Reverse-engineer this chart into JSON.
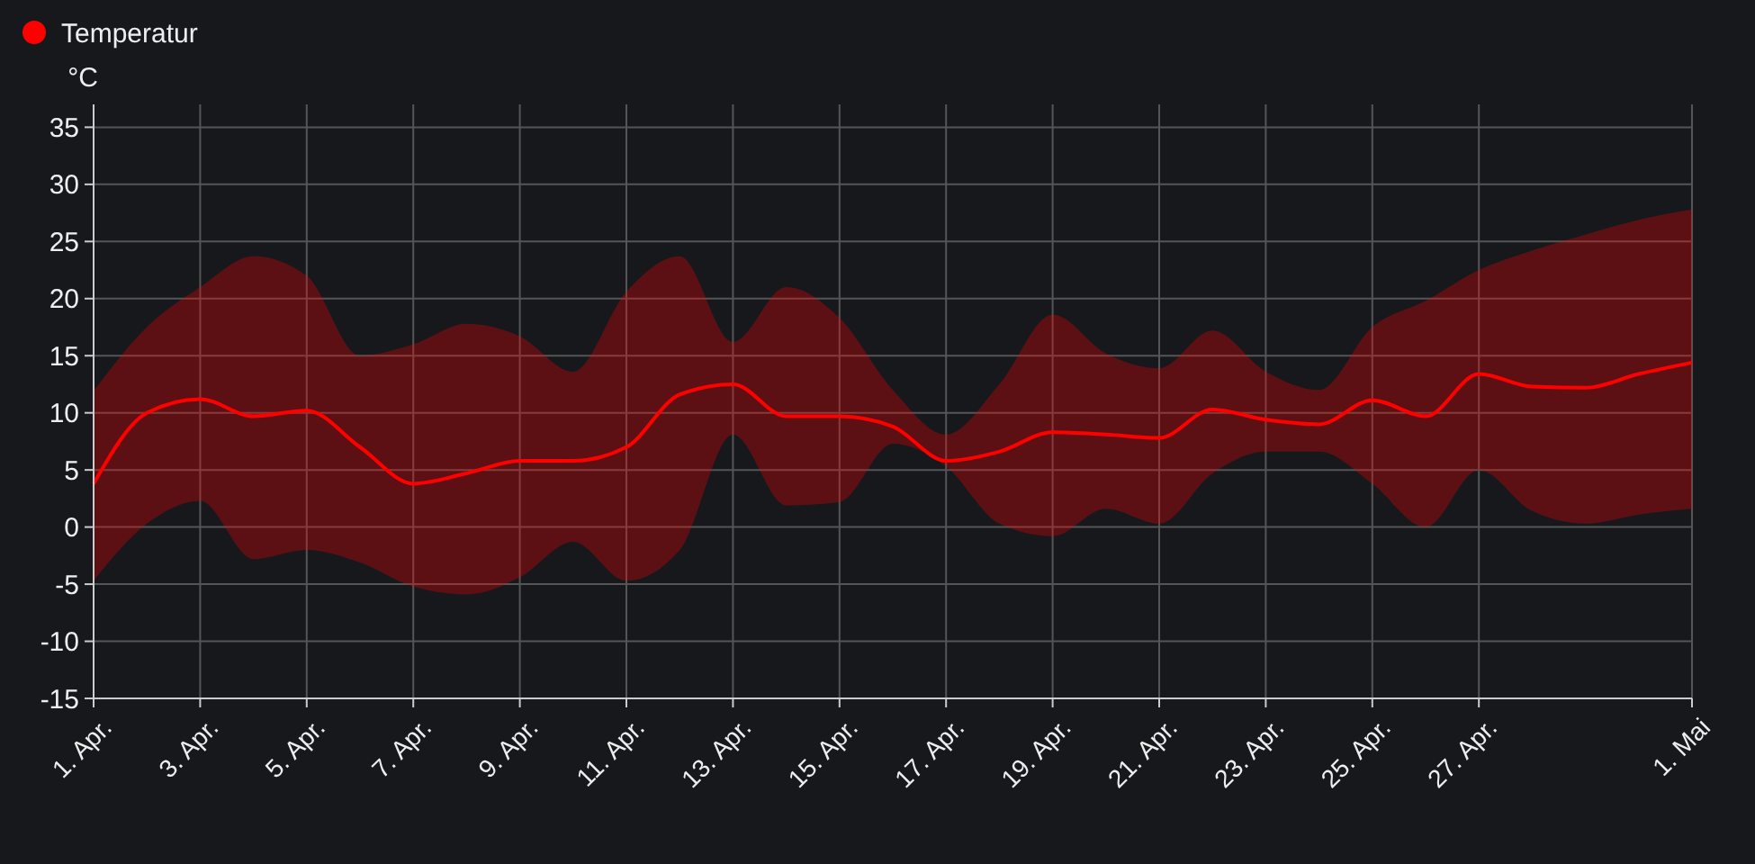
{
  "chart_data": {
    "type": "line",
    "ylabel": "°C",
    "legend": "top left",
    "grid": true,
    "marker": "none",
    "line_style": "solid",
    "xlim": [
      "--04-01",
      "--05-01"
    ],
    "xticks": [
      {
        "value": "--04-01",
        "label": "1. Apr."
      },
      {
        "value": "--04-03",
        "label": "3. Apr."
      },
      {
        "value": "--04-05",
        "label": "5. Apr."
      },
      {
        "value": "--04-07",
        "label": "7. Apr."
      },
      {
        "value": "--04-09",
        "label": "9. Apr."
      },
      {
        "value": "--04-11",
        "label": "11. Apr."
      },
      {
        "value": "--04-13",
        "label": "13. Apr."
      },
      {
        "value": "--04-15",
        "label": "15. Apr."
      },
      {
        "value": "--04-17",
        "label": "17. Apr."
      },
      {
        "value": "--04-19",
        "label": "19. Apr."
      },
      {
        "value": "--04-21",
        "label": "21. Apr."
      },
      {
        "value": "--04-23",
        "label": "23. Apr."
      },
      {
        "value": "--04-25",
        "label": "25. Apr."
      },
      {
        "value": "--04-27",
        "label": "27. Apr."
      },
      {
        "value": "--05-01",
        "label": "1. Mai"
      }
    ],
    "ylim": [
      -15,
      37
    ],
    "yticks": [
      -15,
      -10,
      -5,
      0,
      5,
      10,
      15,
      20,
      25,
      30,
      35
    ],
    "x": [
      "--04-01",
      "--04-02",
      "--04-03",
      "--04-04",
      "--04-05",
      "--04-06",
      "--04-07",
      "--04-08",
      "--04-09",
      "--04-10",
      "--04-11",
      "--04-12",
      "--04-13",
      "--04-14",
      "--04-15",
      "--04-16",
      "--04-17",
      "--04-18",
      "--04-19",
      "--04-20",
      "--04-21",
      "--04-22",
      "--04-23",
      "--04-24",
      "--04-25",
      "--04-26",
      "--04-27",
      "--04-28",
      "--04-29",
      "--04-30",
      "--05-01"
    ],
    "series": [
      {
        "name": "Temperatur",
        "color": "#ff0000",
        "values": [
          3.8,
          10,
          11.2,
          9.7,
          10.2,
          7,
          3.8,
          4.7,
          5.8,
          5.8,
          7,
          11.6,
          12.5,
          9.7,
          9.7,
          8.8,
          5.8,
          6.6,
          8.3,
          8.1,
          7.8,
          10.3,
          9.4,
          9,
          11.1,
          9.7,
          13.4,
          12.3,
          12.2,
          13.4,
          14.4
        ],
        "upper": [
          11.9,
          17.5,
          21,
          23.7,
          22,
          15,
          16,
          17.8,
          16.7,
          13.6,
          20.6,
          23.7,
          16.2,
          21,
          18.3,
          12,
          8.1,
          12.5,
          18.6,
          15.2,
          13.9,
          17.2,
          13.6,
          12,
          17.5,
          19.8,
          22.5,
          24.2,
          25.6,
          26.9,
          27.8
        ],
        "lower": [
          -4.7,
          0.3,
          2.3,
          -2.8,
          -2,
          -3.1,
          -5.2,
          -5.9,
          -4.4,
          -1.3,
          -4.7,
          -2,
          8.1,
          1.9,
          2.2,
          7.3,
          5.3,
          0.3,
          -0.8,
          1.6,
          0.3,
          4.7,
          6.6,
          6.6,
          3.8,
          0,
          5,
          1.4,
          0.3,
          1.1,
          1.6
        ]
      }
    ]
  }
}
